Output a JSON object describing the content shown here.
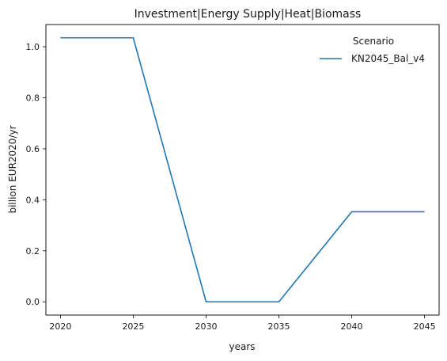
{
  "chart_data": {
    "type": "line",
    "title": "Investment|Energy Supply|Heat|Biomass",
    "xlabel": "years",
    "ylabel": "billion EUR2020/yr",
    "x": [
      2020,
      2025,
      2030,
      2035,
      2040,
      2045
    ],
    "xticks": [
      2020,
      2025,
      2030,
      2035,
      2040,
      2045
    ],
    "xlim": [
      2019,
      2046
    ],
    "yticks": [
      0.0,
      0.2,
      0.4,
      0.6,
      0.8,
      1.0
    ],
    "ytick_labels": [
      "0.0",
      "0.2",
      "0.4",
      "0.6",
      "0.8",
      "1.0"
    ],
    "ylim": [
      -0.052,
      1.087
    ],
    "grid": false,
    "legend": {
      "title": "Scenario",
      "placement": "top-right"
    },
    "series": [
      {
        "name": "KN2045_Bal_v4",
        "color": "#1f77b4",
        "values": [
          1.035,
          1.035,
          0.0,
          0.0,
          0.353,
          0.353
        ]
      }
    ]
  }
}
